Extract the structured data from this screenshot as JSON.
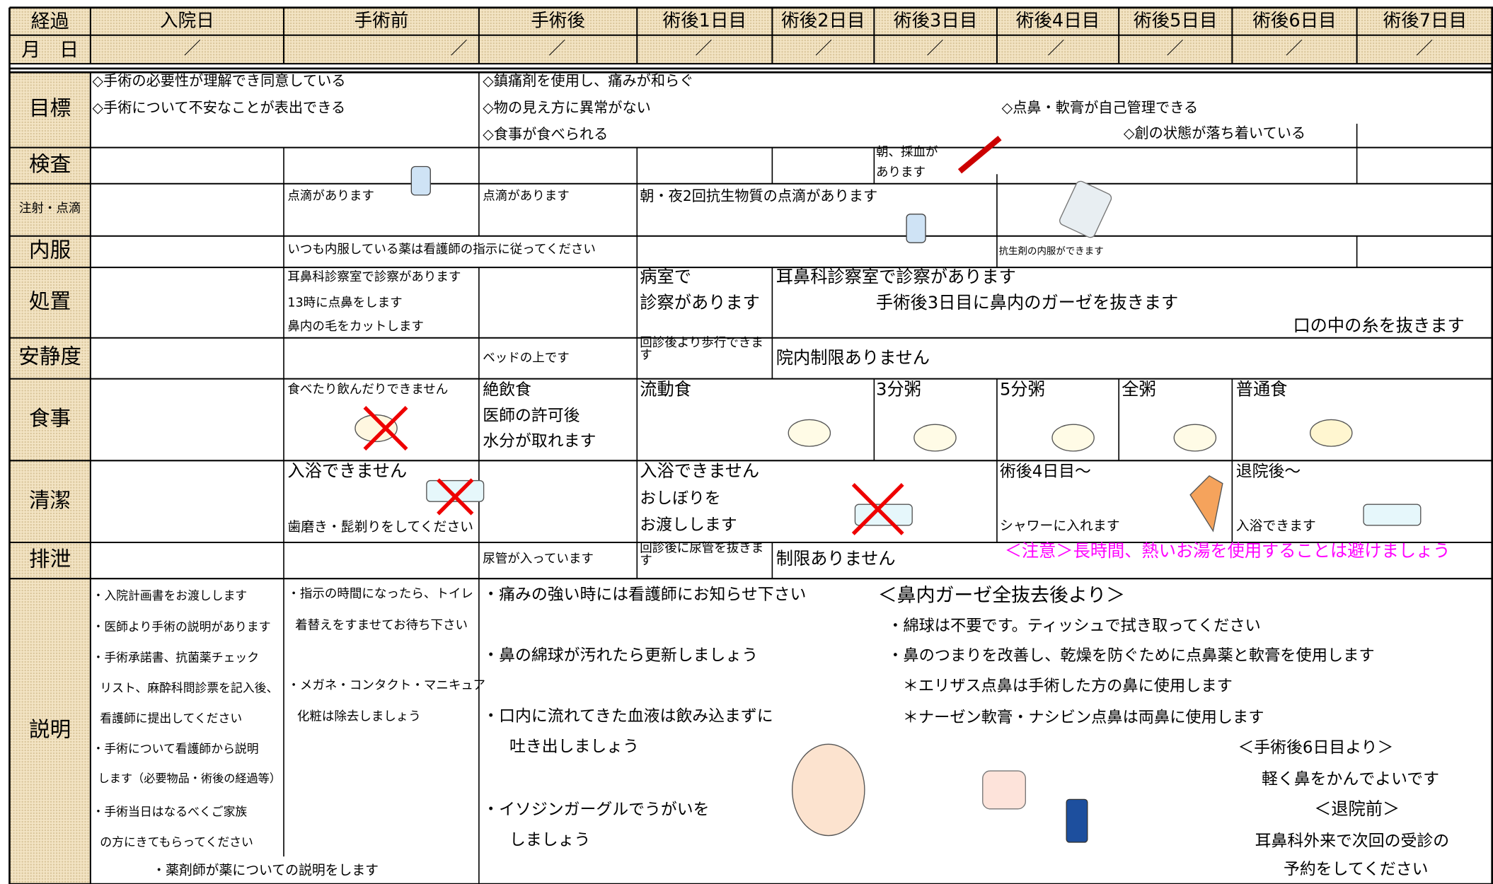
{
  "header": {
    "columns": [
      "経過",
      "入院日",
      "手術前",
      "手術後",
      "術後1日目",
      "術後2日目",
      "術後3日目",
      "術後4日目",
      "術後5日目",
      "術後6日目",
      "術後7日目"
    ]
  },
  "date_row": {
    "label": "月　日",
    "marks": [
      "／",
      "／",
      "／",
      "／",
      "／",
      "／",
      "／",
      "／",
      "／",
      "／"
    ]
  },
  "rows": [
    {
      "label": "目標",
      "items": [
        "◇手術の必要性が理解でき同意している",
        "◇手術について不安なことが表出できる",
        "◇鎮痛剤を使用し、痛みが和らぐ",
        "◇物の見え方に異常がない",
        "◇食事が食べられる",
        "◇点鼻・軟膏が自己管理できる",
        "◇創の状態が落ち着いている"
      ]
    },
    {
      "label": "検査",
      "items": [
        "朝、採血が",
        "あります"
      ]
    },
    {
      "label": "注射・点滴",
      "items": [
        "点滴があります",
        "点滴があります",
        "朝・夜2回抗生物質の点滴があります"
      ]
    },
    {
      "label": "内服",
      "items": [
        "いつも内服している薬は看護師の指示に従ってください",
        "抗生剤の内服ができます"
      ]
    },
    {
      "label": "処置",
      "items": [
        "耳鼻科診察室で診察があります",
        "13時に点鼻をします",
        "鼻内の毛をカットします",
        "病室で",
        "診察があります",
        "耳鼻科診察室で診察があります",
        "手術後3日目に鼻内のガーゼを抜きます",
        "口の中の糸を抜きます"
      ]
    },
    {
      "label": "安静度",
      "items": [
        "ベッドの上です",
        "回診後より歩行できます",
        "院内制限ありません"
      ]
    },
    {
      "label": "食事",
      "items": [
        "食べたり飲んだりできません",
        "絶飲食",
        "医師の許可後",
        "水分が取れます",
        "流動食",
        "3分粥",
        "5分粥",
        "全粥",
        "普通食"
      ]
    },
    {
      "label": "清潔",
      "items": [
        "入浴できません",
        "歯磨き・髭剃りをしてください",
        "入浴できません",
        "おしぼりを",
        "お渡しします",
        "術後4日目～",
        "シャワーに入れます",
        "退院後～",
        "入浴できます"
      ]
    },
    {
      "label": "排泄",
      "items": [
        "尿管が入っています",
        "回診後に尿管を抜きます",
        "制限ありません",
        "＜注意＞長時間、熱いお湯を使用することは避けましょう"
      ]
    },
    {
      "label": "説明",
      "items": [
        "・入院計画書をお渡しします",
        "・医師より手術の説明があります",
        "・手術承諾書、抗菌薬チェック",
        "リスト、麻酔科問診票を記入後、",
        "看護師に提出してください",
        "・手術について看護師から説明",
        "します（必要物品・術後の経過等）",
        "・手術当日はなるべくご家族",
        "の方にきてもらってください",
        "・薬剤師が薬についての説明をします",
        "・指示の時間になったら、トイレ",
        "着替えをすませてお待ち下さい",
        "・メガネ・コンタクト・マニキュア",
        "化粧は除去しましょう",
        "・痛みの強い時には看護師にお知らせ下さい",
        "・鼻の綿球が汚れたら更新しましょう",
        "・口内に流れてきた血液は飲み込まずに",
        "吐き出しましょう",
        "・イソジンガーグルでうがいを",
        "しましょう",
        "＜鼻内ガーゼ全抜去後より＞",
        "・綿球は不要です。ティッシュで拭き取ってください",
        "・鼻のつまりを改善し、乾燥を防ぐために点鼻薬と軟膏を使用します",
        "＊エリザス点鼻は手術した方の鼻に使用します",
        "＊ナーゼン軟膏・ナシビン点鼻は両鼻に使用します",
        "＜手術後6日目より＞",
        "軽く鼻をかんでよいです",
        "＜退院前＞",
        "耳鼻科外来で次回の受診の",
        "予約をしてください"
      ]
    }
  ]
}
